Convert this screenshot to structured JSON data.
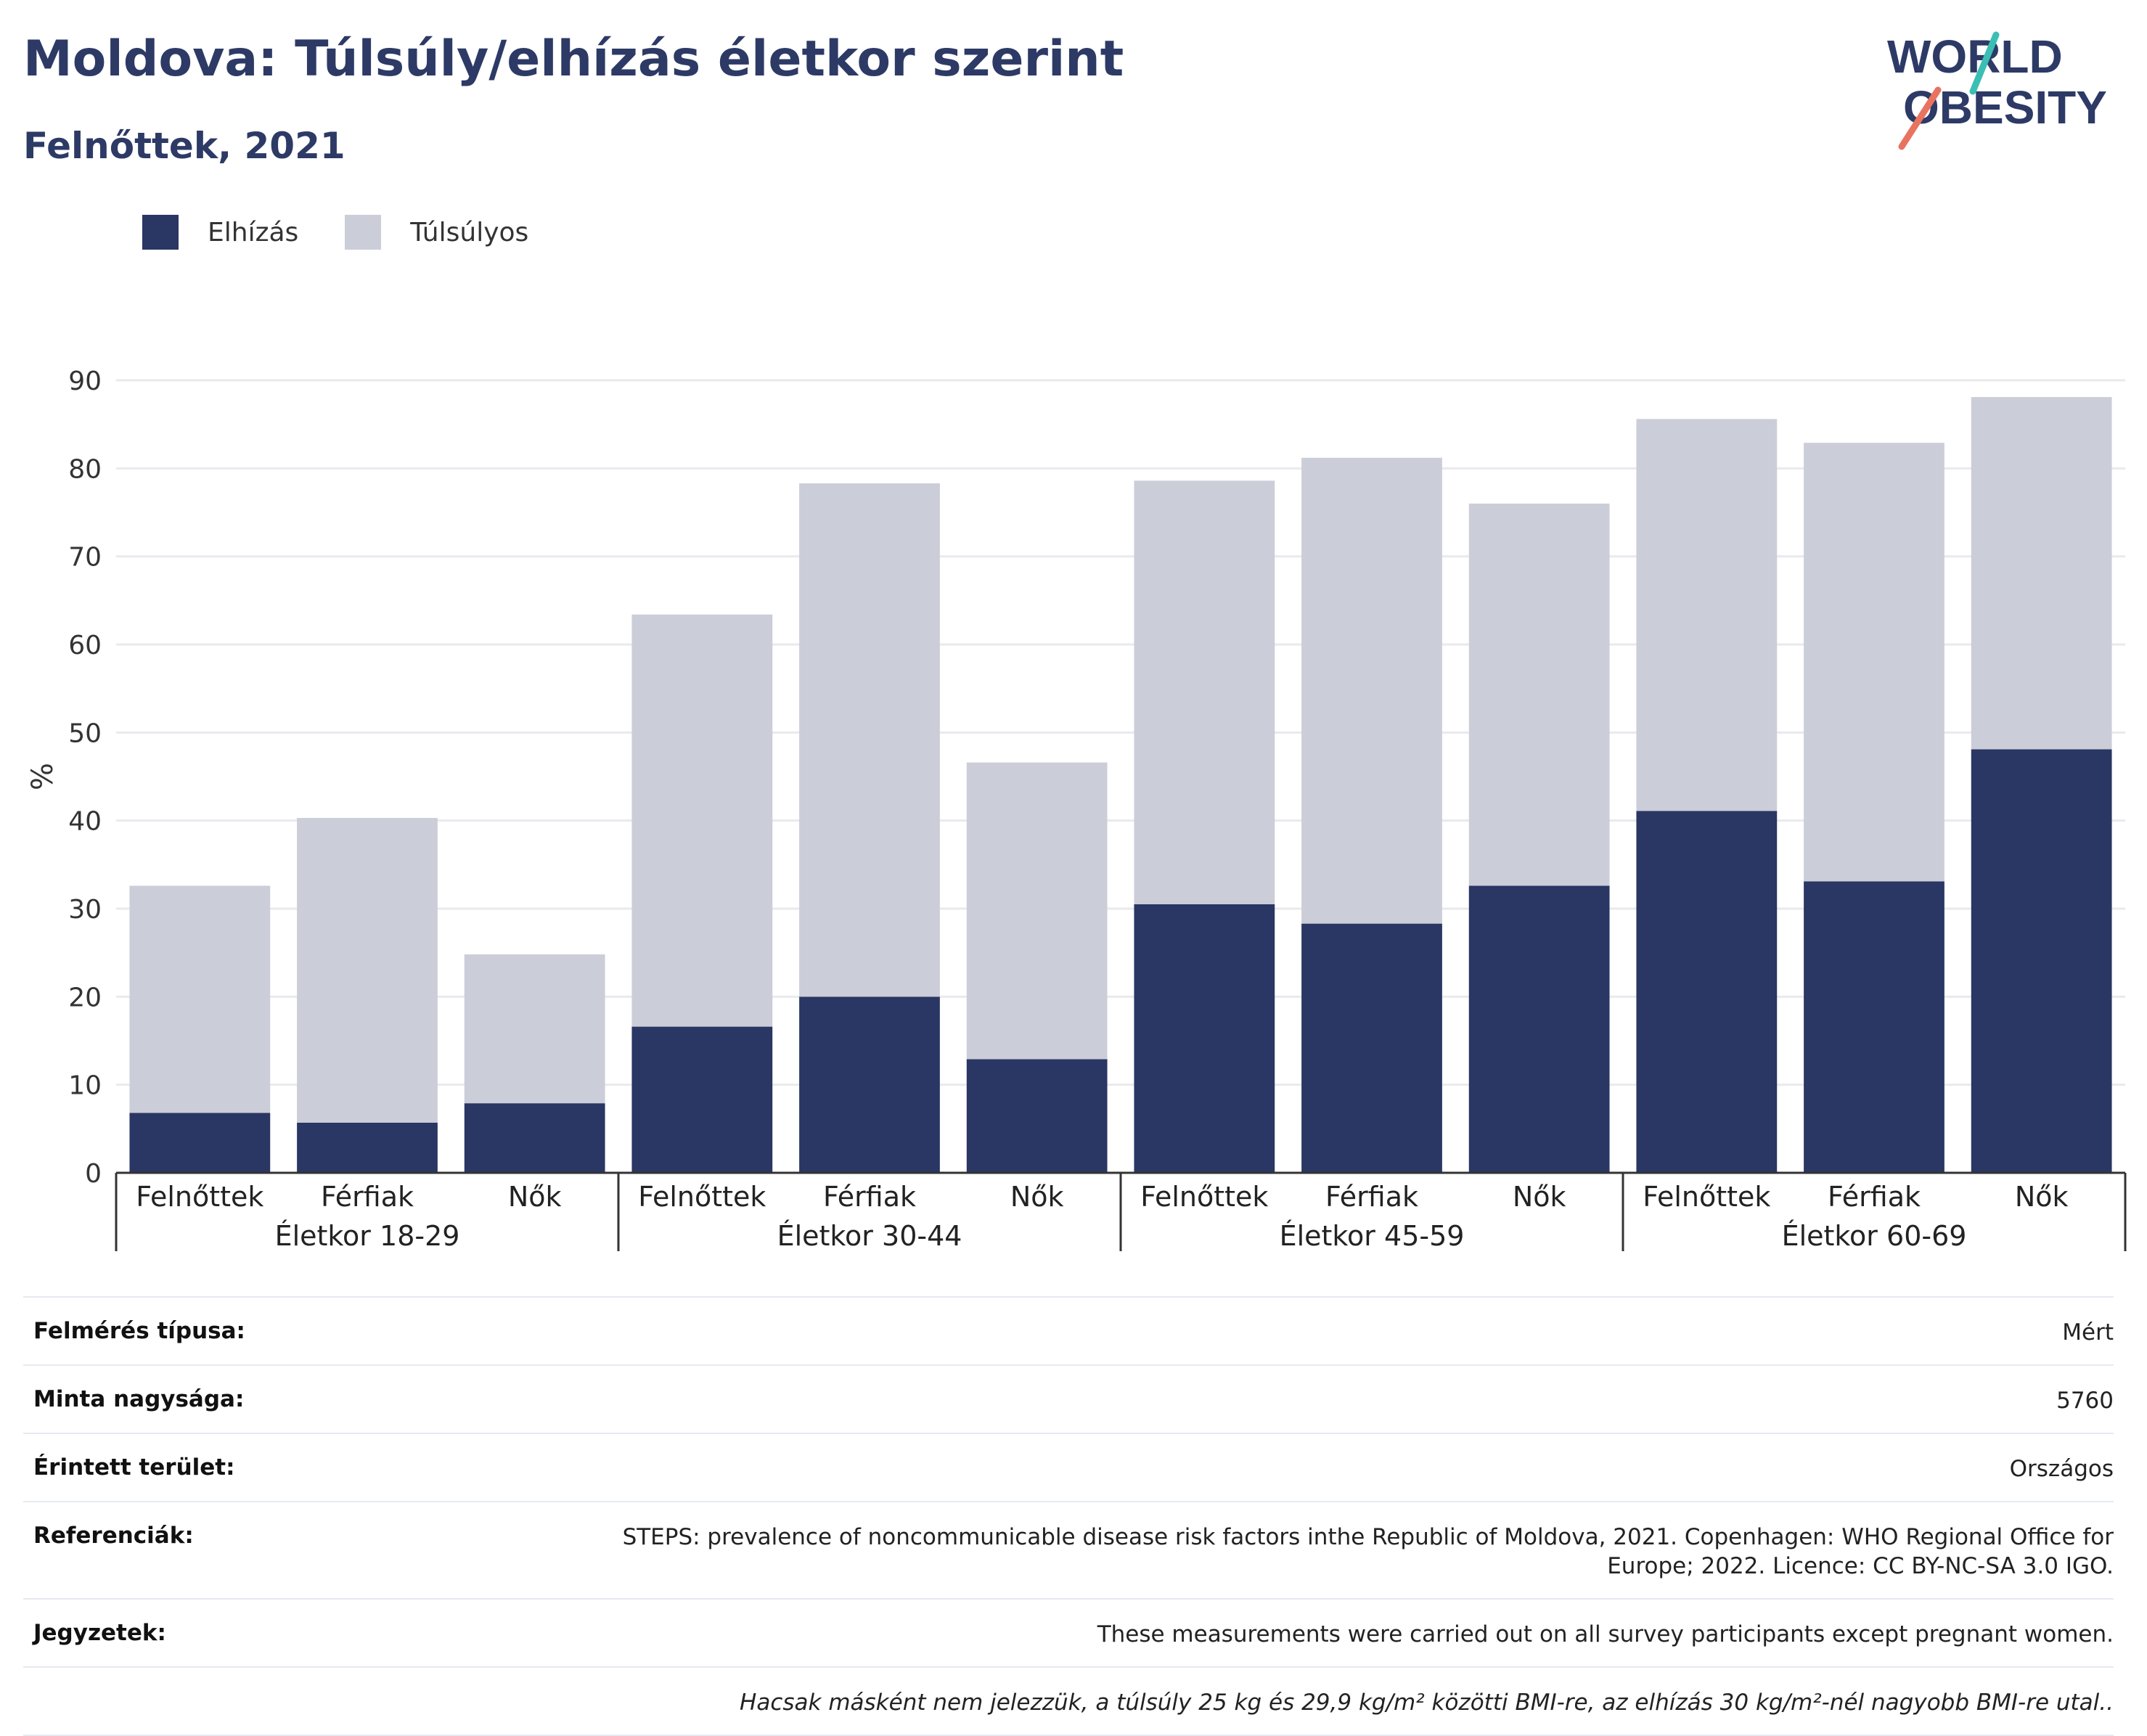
{
  "title": "Moldova: Túlsúly/elhízás életkor szerint",
  "subtitle": "Felnőttek, 2021",
  "logo": {
    "line1": "WORLD",
    "line2": "OBESITY",
    "accent_teal": "#3bbfb5",
    "accent_coral": "#e8735f"
  },
  "colors": {
    "obesity": "#2a3663",
    "overweight": "#cbcdd8",
    "axis": "#333333",
    "grid": "#e9eaee"
  },
  "chart_data": {
    "type": "bar",
    "stacked": true,
    "title": "Moldova: Túlsúly/elhízás életkor szerint",
    "subtitle": "Felnőttek, 2021",
    "ylabel": "%",
    "ylim": [
      0,
      90
    ],
    "yticks": [
      0,
      10,
      20,
      30,
      40,
      50,
      60,
      70,
      80,
      90
    ],
    "grid": true,
    "legend_position": "top-left",
    "groups": [
      "Életkor 18-29",
      "Életkor 30-44",
      "Életkor 45-59",
      "Életkor 60-69"
    ],
    "categories": [
      "Felnőttek",
      "Férfiak",
      "Nők",
      "Felnőttek",
      "Férfiak",
      "Nők",
      "Felnőttek",
      "Férfiak",
      "Nők",
      "Felnőttek",
      "Férfiak",
      "Nők"
    ],
    "series": [
      {
        "name": "Elhízás",
        "color": "#2a3663",
        "values": [
          6.8,
          5.7,
          7.9,
          16.6,
          20.0,
          12.9,
          30.5,
          28.3,
          32.6,
          41.1,
          33.1,
          48.1
        ]
      },
      {
        "name": "Túlsúlyos",
        "color": "#cbcdd8",
        "values": [
          25.8,
          34.6,
          16.9,
          46.8,
          58.3,
          33.7,
          48.1,
          52.9,
          43.4,
          44.5,
          49.8,
          40.0
        ]
      }
    ]
  },
  "info": [
    {
      "label": "Felmérés típusa:",
      "value": "Mért"
    },
    {
      "label": "Minta nagysága:",
      "value": "5760"
    },
    {
      "label": "Érintett terület:",
      "value": "Országos"
    },
    {
      "label": "Referenciák:",
      "value": "STEPS: prevalence of noncommunicable disease risk factors inthe Republic of Moldova, 2021. Copenhagen: WHO Regional Office for Europe; 2022. Licence: CC BY-NC-SA 3.0 IGO."
    },
    {
      "label": "Jegyzetek:",
      "value": "These measurements were carried out on all survey participants except pregnant women."
    },
    {
      "label": "",
      "value": "Hacsak másként nem jelezzük, a túlsúly 25 kg és 29,9 kg/m² közötti BMI-re, az elhízás 30 kg/m²-nél nagyobb BMI-re utal.."
    }
  ]
}
